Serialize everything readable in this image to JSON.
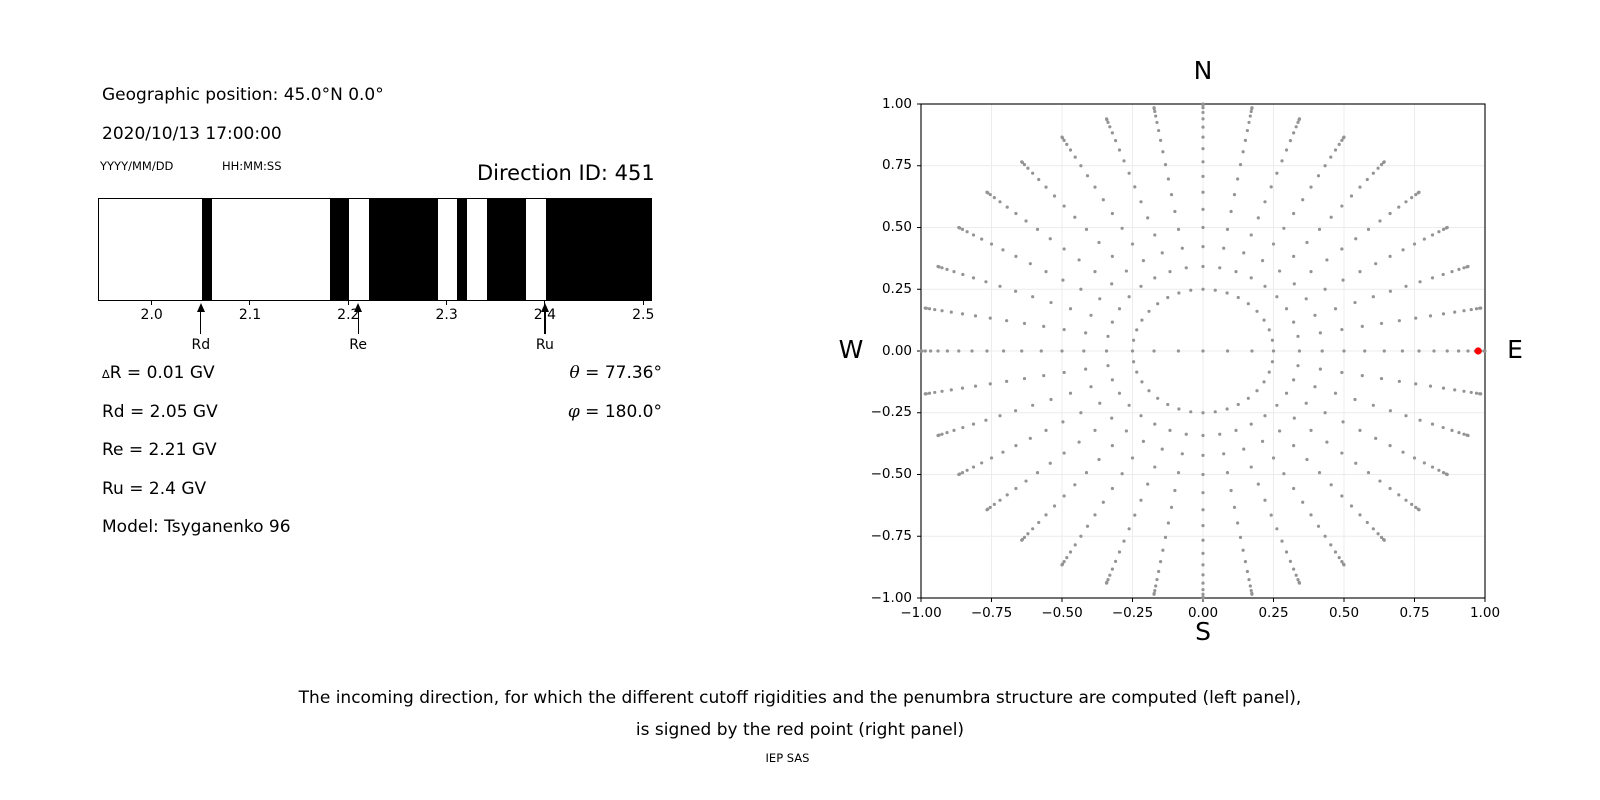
{
  "header": {
    "geo_position": "Geographic position: 45.0°N 0.0°",
    "datetime": "2020/10/13 17:00:00",
    "date_format_hint": "YYYY/MM/DD",
    "time_format_hint": "HH:MM:SS",
    "direction_id": "Direction ID: 451"
  },
  "parameters": {
    "delta_symbol": "∆",
    "delta_rest": "R = 0.01 GV",
    "rd": "Rd = 2.05 GV",
    "re": "Re = 2.21 GV",
    "ru": "Ru = 2.4 GV",
    "model": "Model: Tsyganenko 96",
    "theta_symbol": "θ",
    "theta_rest": " = 77.36°",
    "phi_symbol": "φ",
    "phi_rest": " = 180.0°"
  },
  "caption": {
    "line1": "The incoming direction, for which the different cutoff rigidities and the penumbra structure are computed (left panel),",
    "line2": "is signed by the red point (right panel)",
    "credit": "IEP SAS"
  },
  "chart_data": [
    {
      "type": "bar",
      "name": "penumbra-structure",
      "xlim": [
        1.9454,
        2.5089
      ],
      "xticks": [
        {
          "value": 2.0,
          "label": "2.0"
        },
        {
          "value": 2.1,
          "label": "2.1"
        },
        {
          "value": 2.2,
          "label": "2.2"
        },
        {
          "value": 2.3,
          "label": "2.3"
        },
        {
          "value": 2.4,
          "label": "2.4"
        },
        {
          "value": 2.5,
          "label": "2.5"
        }
      ],
      "black_segments": [
        [
          2.05,
          2.06
        ],
        [
          2.18,
          2.2
        ],
        [
          2.22,
          2.29
        ],
        [
          2.31,
          2.32
        ],
        [
          2.34,
          2.38
        ],
        [
          2.4,
          2.5089
        ]
      ],
      "markers": [
        {
          "label": "Rd",
          "value": 2.05
        },
        {
          "label": "Re",
          "value": 2.21
        },
        {
          "label": "Ru",
          "value": 2.4
        }
      ],
      "bar_color": "#000000",
      "border_color": "#000000",
      "background": "#ffffff"
    },
    {
      "type": "scatter",
      "name": "incoming-directions",
      "xlim": [
        -1,
        1
      ],
      "ylim": [
        -1,
        1
      ],
      "xticks": [
        {
          "value": -1.0,
          "label": "−1.00"
        },
        {
          "value": -0.75,
          "label": "−0.75"
        },
        {
          "value": -0.5,
          "label": "−0.50"
        },
        {
          "value": -0.25,
          "label": "−0.25"
        },
        {
          "value": 0.0,
          "label": "0.00"
        },
        {
          "value": 0.25,
          "label": "0.25"
        },
        {
          "value": 0.5,
          "label": "0.50"
        },
        {
          "value": 0.75,
          "label": "0.75"
        },
        {
          "value": 1.0,
          "label": "1.00"
        }
      ],
      "yticks": [
        {
          "value": 1.0,
          "label": "1.00"
        },
        {
          "value": 0.75,
          "label": "0.75"
        },
        {
          "value": 0.5,
          "label": "0.50"
        },
        {
          "value": 0.25,
          "label": "0.25"
        },
        {
          "value": 0.0,
          "label": "0.00"
        },
        {
          "value": -0.25,
          "label": "−0.25"
        },
        {
          "value": -0.5,
          "label": "−0.50"
        },
        {
          "value": -0.75,
          "label": "−0.75"
        },
        {
          "value": -1.0,
          "label": "−1.00"
        }
      ],
      "grid": true,
      "grid_color": "#ececec",
      "compass": {
        "top": "N",
        "bottom": "S",
        "left": "W",
        "right": "E"
      },
      "dot_color": "#949494",
      "dot_size_px": 3.2,
      "direction_grid": {
        "center_point": true,
        "ring": {
          "radius": 0.25,
          "count": 36
        },
        "rays": {
          "azimuth_start_deg": 0,
          "azimuth_step_deg": 10,
          "azimuth_count": 36,
          "zenith_min_deg": 20,
          "zenith_max_deg": 90,
          "zenith_step_deg": 5,
          "radius_formula": "sin(zenith)"
        },
        "horizontal_extra_zenith_deg": [
          5,
          10
        ]
      },
      "red_point": {
        "x": 0.9758,
        "y": 0.0,
        "color": "#ff0000"
      }
    }
  ]
}
